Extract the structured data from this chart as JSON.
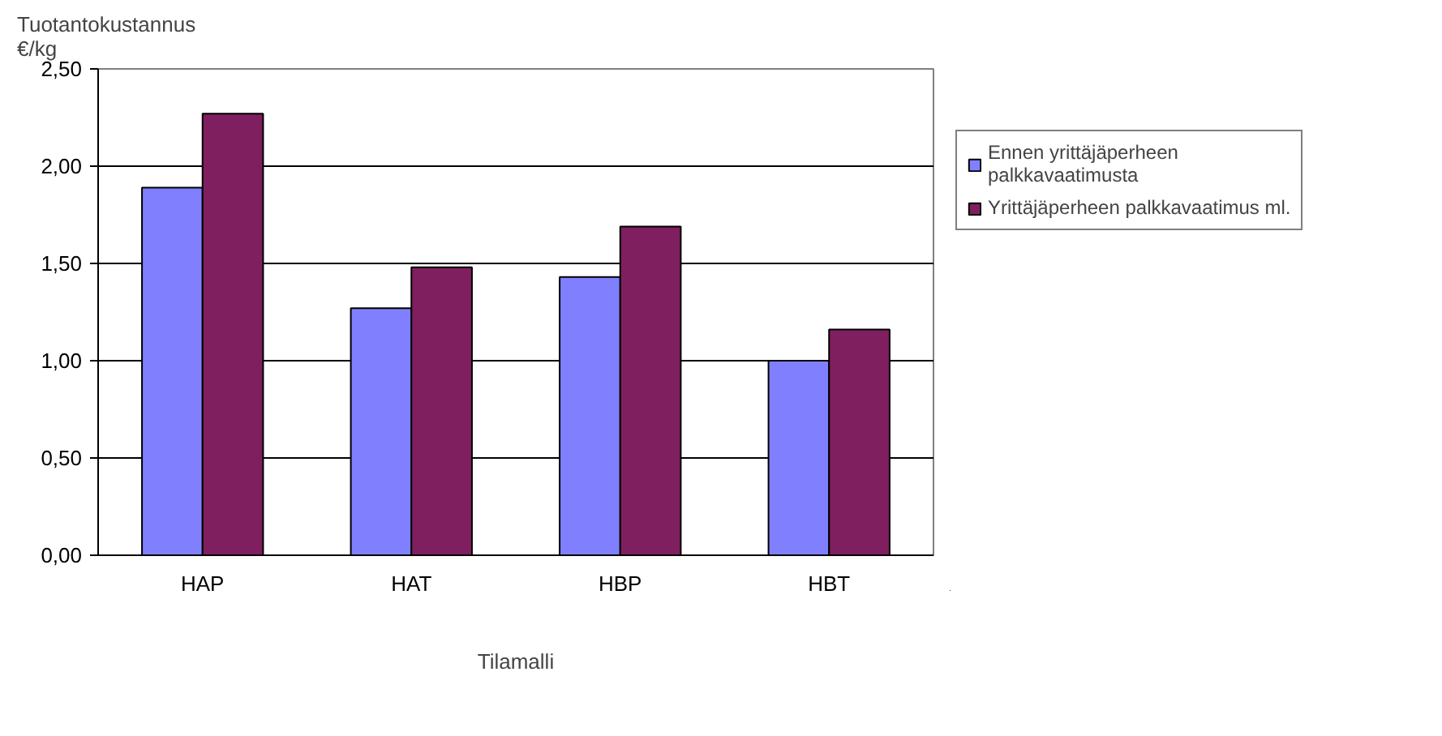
{
  "chart_data": {
    "type": "bar",
    "ylabel": "Tuotantokustannus €/kg",
    "xlabel": "Tilamalli",
    "categories": [
      "HAP",
      "HAT",
      "HBP",
      "HBT"
    ],
    "series": [
      {
        "name": "Ennen yrittäjäperheen palkkavaatimusta",
        "color": "#8080ff",
        "values": [
          1.89,
          1.27,
          1.43,
          1.0
        ]
      },
      {
        "name": "Yrittäjäperheen palkkavaatimus ml.",
        "color": "#7f1f5f",
        "values": [
          2.27,
          1.48,
          1.69,
          1.16
        ]
      }
    ],
    "ylim": [
      0,
      2.5
    ],
    "yticks": [
      {
        "value": 0,
        "label": "0,00"
      },
      {
        "value": 0.5,
        "label": "0,50"
      },
      {
        "value": 1,
        "label": "1,00"
      },
      {
        "value": 1.5,
        "label": "1,50"
      },
      {
        "value": 2,
        "label": "2,00"
      },
      {
        "value": 2.5,
        "label": "2,50"
      }
    ],
    "grid": "y",
    "legend": "right"
  }
}
